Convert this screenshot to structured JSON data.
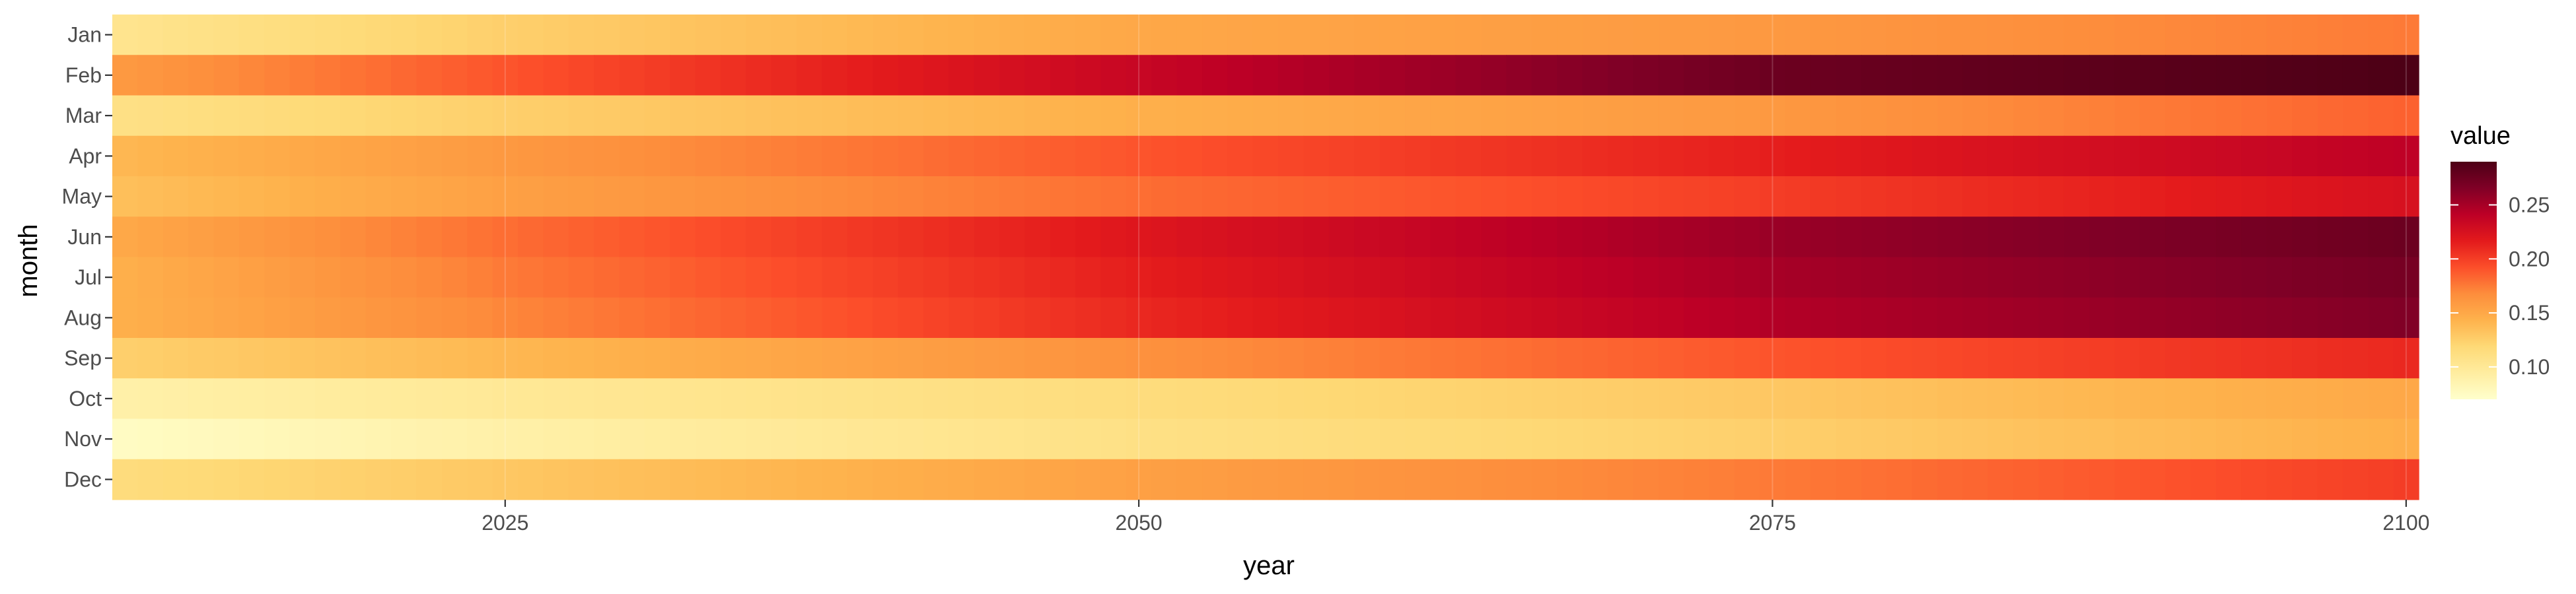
{
  "chart_data": {
    "type": "heatmap",
    "title": "",
    "xlabel": "year",
    "ylabel": "month",
    "x_start": 2010,
    "x_end": 2100,
    "xlim": [
      2009.5,
      2100.5
    ],
    "x_ticks": [
      2025,
      2050,
      2075,
      2100
    ],
    "months": [
      "Jan",
      "Feb",
      "Mar",
      "Apr",
      "May",
      "Jun",
      "Jul",
      "Aug",
      "Sep",
      "Oct",
      "Nov",
      "Dec"
    ],
    "month_profiles": [
      {
        "month": "Jan",
        "anchors": [
          [
            2010,
            0.105
          ],
          [
            2025,
            0.125
          ],
          [
            2050,
            0.15
          ],
          [
            2075,
            0.16
          ],
          [
            2100,
            0.175
          ]
        ]
      },
      {
        "month": "Feb",
        "anchors": [
          [
            2010,
            0.16
          ],
          [
            2025,
            0.19
          ],
          [
            2050,
            0.235
          ],
          [
            2075,
            0.275
          ],
          [
            2100,
            0.29
          ]
        ]
      },
      {
        "month": "Mar",
        "anchors": [
          [
            2010,
            0.11
          ],
          [
            2025,
            0.125
          ],
          [
            2050,
            0.145
          ],
          [
            2075,
            0.16
          ],
          [
            2100,
            0.185
          ]
        ]
      },
      {
        "month": "Apr",
        "anchors": [
          [
            2010,
            0.14
          ],
          [
            2025,
            0.16
          ],
          [
            2050,
            0.19
          ],
          [
            2075,
            0.215
          ],
          [
            2100,
            0.24
          ]
        ]
      },
      {
        "month": "May",
        "anchors": [
          [
            2010,
            0.135
          ],
          [
            2025,
            0.155
          ],
          [
            2050,
            0.18
          ],
          [
            2075,
            0.2
          ],
          [
            2100,
            0.225
          ]
        ]
      },
      {
        "month": "Jun",
        "anchors": [
          [
            2010,
            0.15
          ],
          [
            2025,
            0.18
          ],
          [
            2050,
            0.22
          ],
          [
            2075,
            0.255
          ],
          [
            2100,
            0.275
          ]
        ]
      },
      {
        "month": "Jul",
        "anchors": [
          [
            2010,
            0.145
          ],
          [
            2025,
            0.175
          ],
          [
            2050,
            0.215
          ],
          [
            2075,
            0.25
          ],
          [
            2100,
            0.27
          ]
        ]
      },
      {
        "month": "Aug",
        "anchors": [
          [
            2010,
            0.145
          ],
          [
            2025,
            0.17
          ],
          [
            2050,
            0.21
          ],
          [
            2075,
            0.245
          ],
          [
            2100,
            0.265
          ]
        ]
      },
      {
        "month": "Sep",
        "anchors": [
          [
            2010,
            0.125
          ],
          [
            2025,
            0.14
          ],
          [
            2050,
            0.165
          ],
          [
            2075,
            0.19
          ],
          [
            2100,
            0.21
          ]
        ]
      },
      {
        "month": "Oct",
        "anchors": [
          [
            2010,
            0.09
          ],
          [
            2025,
            0.1
          ],
          [
            2050,
            0.115
          ],
          [
            2075,
            0.13
          ],
          [
            2100,
            0.15
          ]
        ]
      },
      {
        "month": "Nov",
        "anchors": [
          [
            2010,
            0.075
          ],
          [
            2025,
            0.09
          ],
          [
            2050,
            0.11
          ],
          [
            2075,
            0.125
          ],
          [
            2100,
            0.145
          ]
        ]
      },
      {
        "month": "Dec",
        "anchors": [
          [
            2010,
            0.115
          ],
          [
            2025,
            0.13
          ],
          [
            2050,
            0.155
          ],
          [
            2075,
            0.175
          ],
          [
            2100,
            0.2
          ]
        ]
      }
    ],
    "value_range": [
      0.07,
      0.29
    ],
    "legend": {
      "title": "value",
      "ticks": [
        0.1,
        0.15,
        0.2,
        0.25
      ],
      "tick_labels": [
        "0.10",
        "0.15",
        "0.20",
        "0.25"
      ],
      "position": "right"
    },
    "colorscale": [
      "#ffffcc",
      "#ffeda0",
      "#fed976",
      "#feb24c",
      "#fd8d3c",
      "#fc4e2a",
      "#e31a1c",
      "#bd0026",
      "#800026",
      "#4d0016"
    ],
    "grid": true
  }
}
